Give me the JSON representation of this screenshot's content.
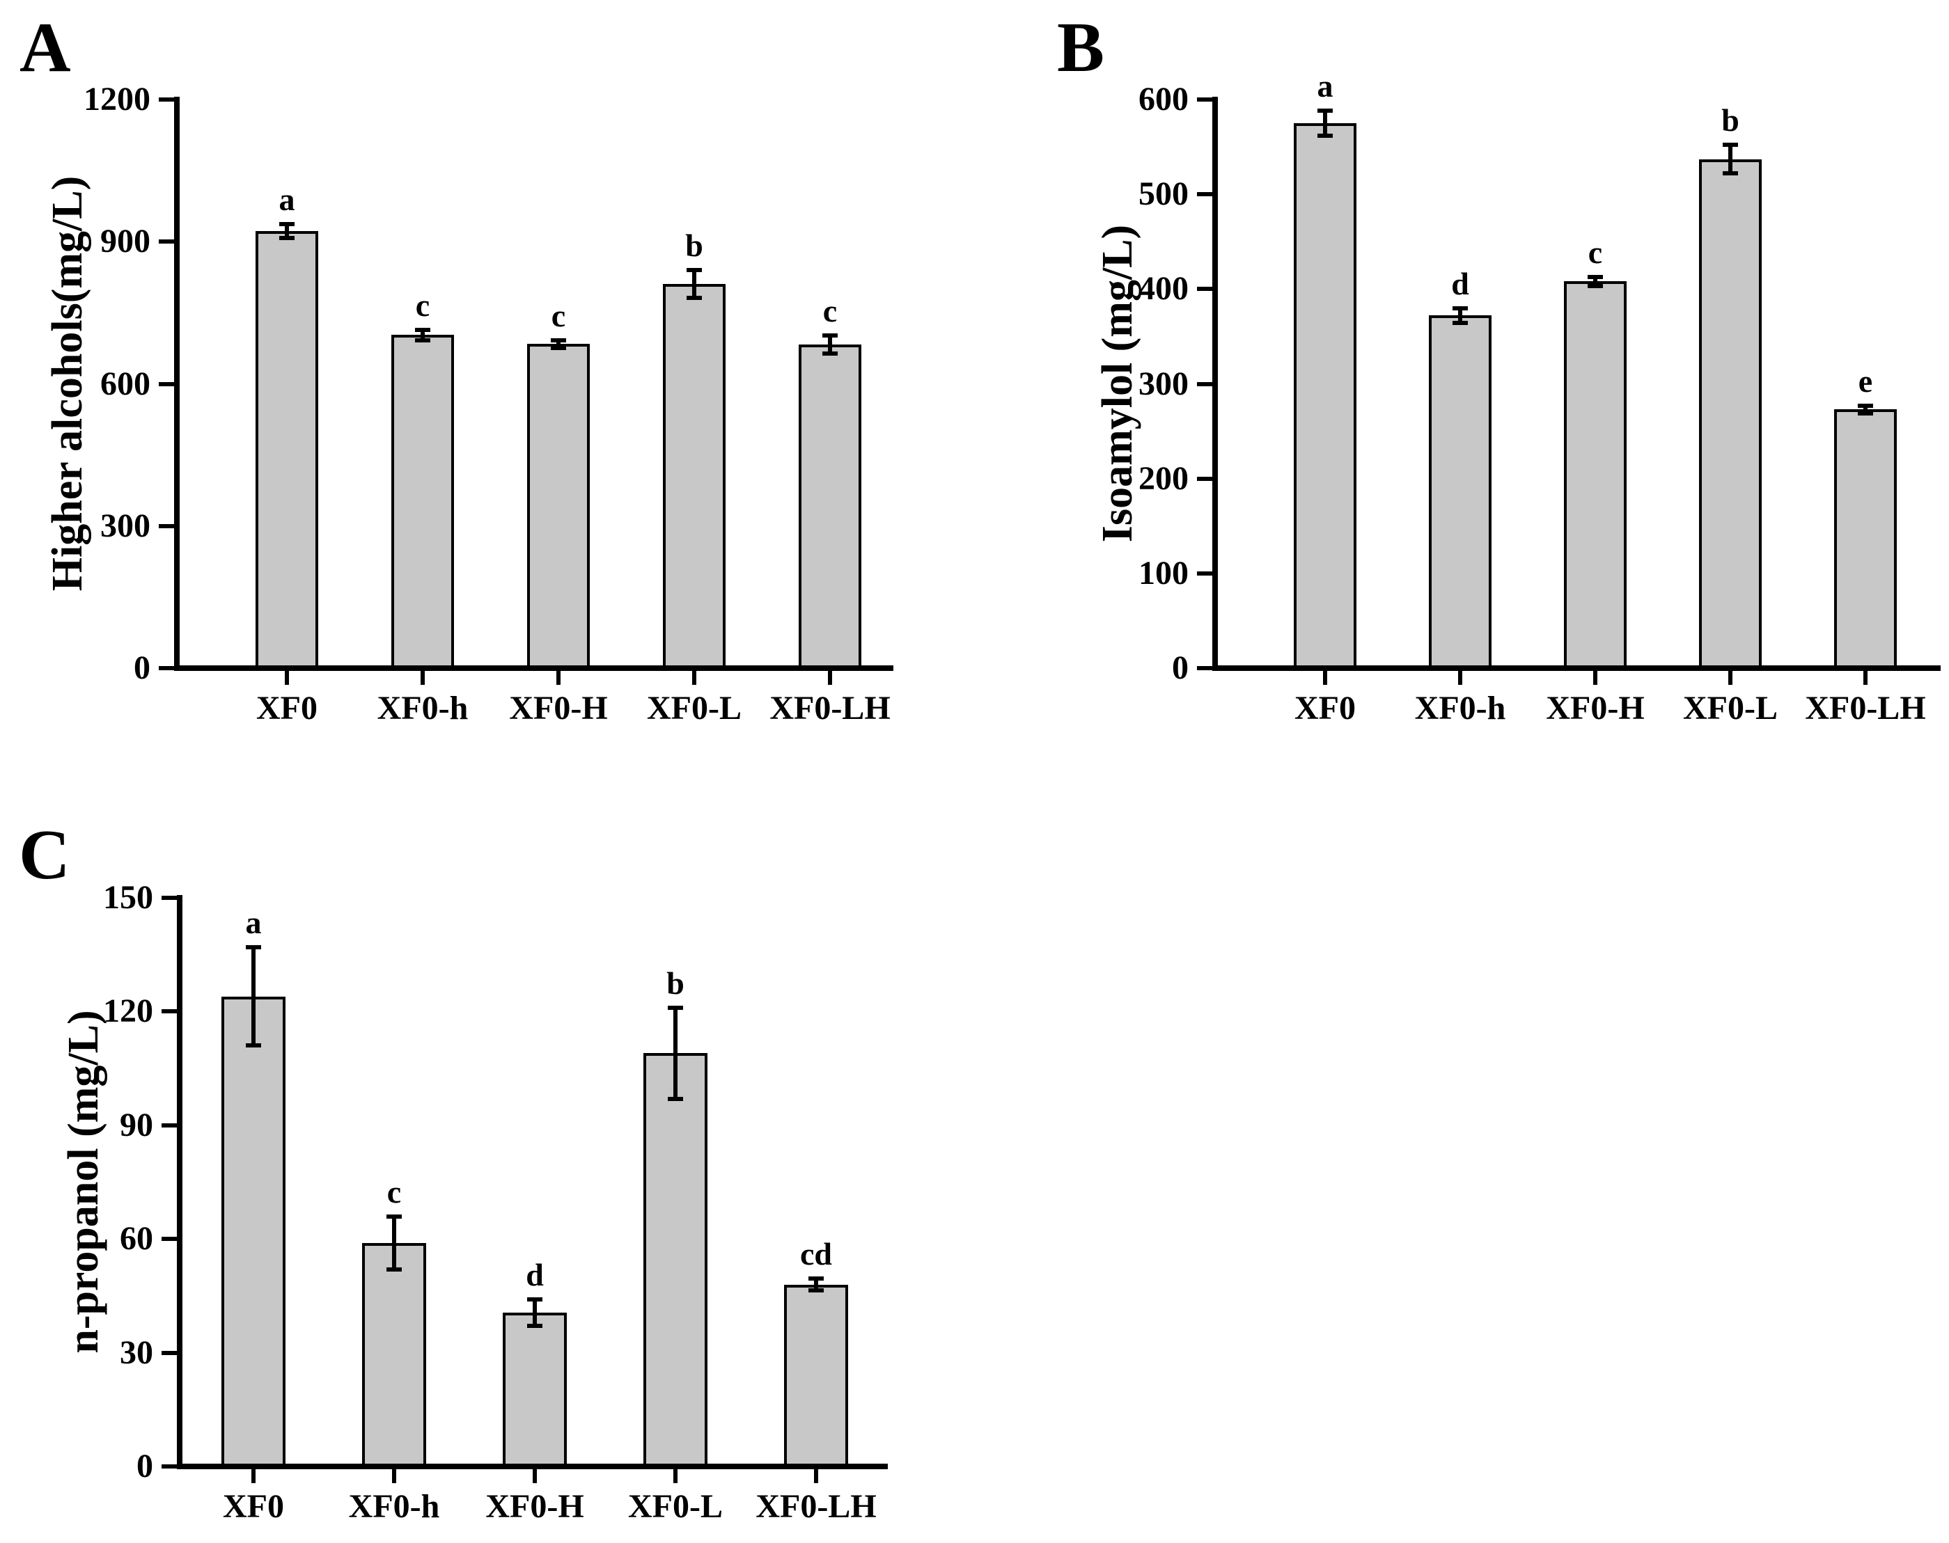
{
  "figure": {
    "background": "#ffffff",
    "bar_fill": "#c8c8c8",
    "bar_border": "#000000",
    "text_color": "#000000"
  },
  "chart_data": [
    {
      "type": "bar",
      "panel": "A",
      "ylabel": "Higher alcohols(mg/L)",
      "xlabel": "",
      "categories": [
        "XF0",
        "XF0-h",
        "XF0-H",
        "XF0-L",
        "XF0-LH"
      ],
      "values": [
        922,
        703,
        684,
        811,
        683
      ],
      "errors": [
        15,
        11,
        8,
        29,
        19
      ],
      "sig_letters": [
        "a",
        "c",
        "c",
        "b",
        "c"
      ],
      "ylim": [
        0,
        1200
      ],
      "yticks": [
        0,
        300,
        600,
        900,
        1200
      ],
      "grid": false,
      "legend": "none"
    },
    {
      "type": "bar",
      "panel": "B",
      "ylabel": "Isoamylol (mg/L)",
      "xlabel": "",
      "categories": [
        "XF0",
        "XF0-h",
        "XF0-H",
        "XF0-L",
        "XF0-LH"
      ],
      "values": [
        575,
        372,
        408,
        537,
        273
      ],
      "errors": [
        13,
        8,
        5,
        15,
        4
      ],
      "sig_letters": [
        "a",
        "d",
        "c",
        "b",
        "e"
      ],
      "ylim": [
        0,
        600
      ],
      "yticks": [
        0,
        100,
        200,
        300,
        400,
        500,
        600
      ],
      "grid": false,
      "legend": "none"
    },
    {
      "type": "bar",
      "panel": "C",
      "ylabel": "n-propanol (mg/L)",
      "xlabel": "",
      "categories": [
        "XF0",
        "XF0-h",
        "XF0-H",
        "XF0-L",
        "XF0-LH"
      ],
      "values": [
        124,
        59,
        40.5,
        109,
        48
      ],
      "errors": [
        13,
        7,
        3.5,
        12,
        1.5
      ],
      "sig_letters": [
        "a",
        "c",
        "d",
        "b",
        "cd"
      ],
      "ylim": [
        0,
        150
      ],
      "yticks": [
        0,
        30,
        60,
        90,
        120,
        150
      ],
      "grid": false,
      "legend": "none"
    }
  ]
}
